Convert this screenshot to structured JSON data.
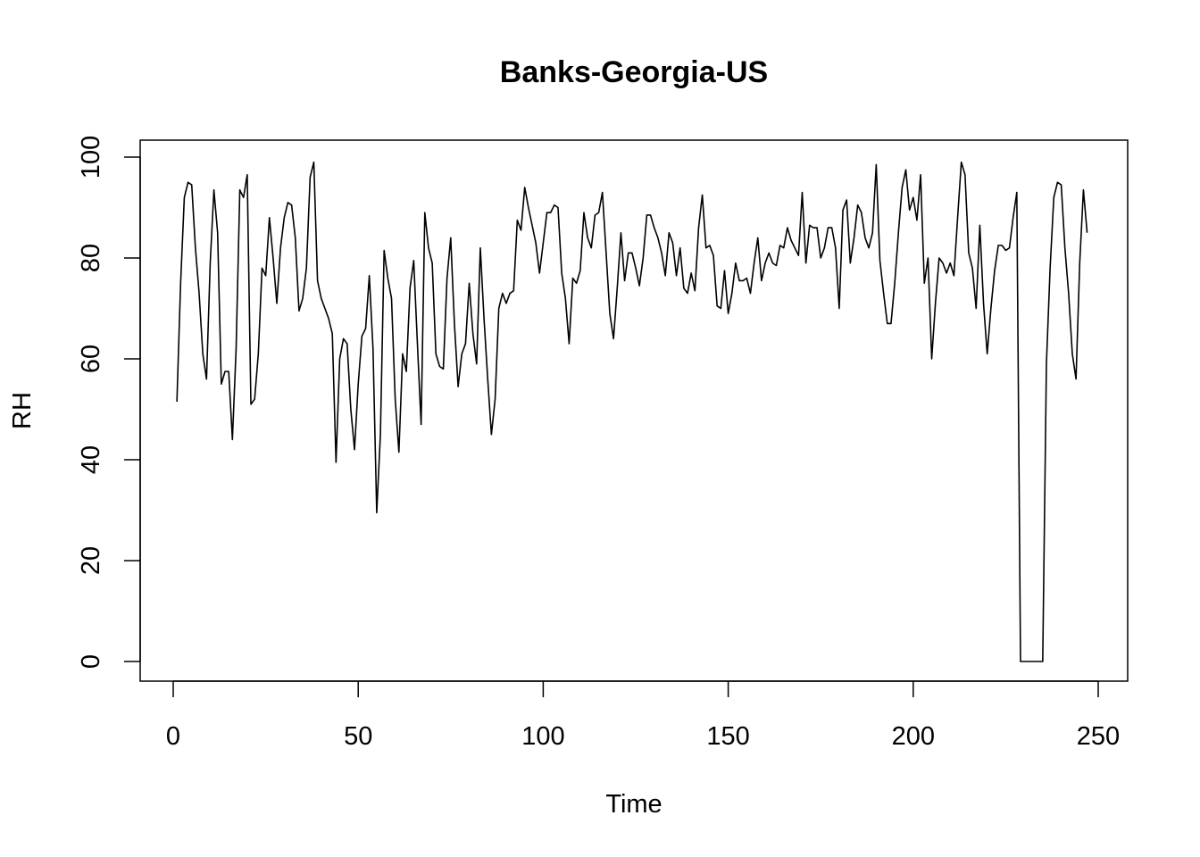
{
  "chart_data": {
    "type": "line",
    "title": "Banks-Georgia-US",
    "xlabel": "Time",
    "ylabel": "RH",
    "xlim": [
      0,
      250
    ],
    "ylim": [
      0,
      100
    ],
    "x_ticks": [
      0,
      50,
      100,
      150,
      200,
      250
    ],
    "y_ticks": [
      0,
      20,
      40,
      60,
      80,
      100
    ],
    "x_tick_labels": [
      "0",
      "50",
      "100",
      "150",
      "200",
      "250"
    ],
    "y_tick_labels": [
      "0",
      "20",
      "40",
      "60",
      "80",
      "100"
    ],
    "grid": false,
    "line_color": "#000000",
    "series": [
      {
        "x_start": 1,
        "x_step": 1,
        "values": [
          51.5,
          75,
          92,
          95,
          94.5,
          82,
          73,
          61,
          56,
          79,
          93.5,
          85,
          55,
          57.5,
          57.5,
          44,
          62,
          93.5,
          92,
          96.5,
          51,
          52,
          61,
          78,
          76.5,
          88,
          80,
          71,
          82,
          88,
          91,
          90.5,
          84,
          69.5,
          72,
          78,
          96,
          99,
          75.5,
          72,
          70,
          68,
          65,
          39.5,
          60,
          64,
          63,
          50,
          42,
          55,
          64.5,
          66,
          76.5,
          62,
          29.5,
          45,
          81.5,
          76,
          72,
          52,
          41.5,
          61,
          57.5,
          74,
          79.5,
          63,
          47,
          89,
          82,
          79,
          61,
          58.5,
          58,
          76,
          84,
          67,
          54.5,
          61,
          63,
          75,
          65,
          59,
          82,
          68,
          56,
          45,
          52,
          70,
          73,
          71,
          73,
          73.5,
          87.5,
          85.5,
          94,
          90,
          86.5,
          83,
          77,
          83,
          89,
          89,
          90.5,
          90,
          77,
          72,
          63,
          76,
          75,
          77.5,
          89,
          84,
          82,
          88.5,
          89,
          93,
          81,
          69,
          64,
          74,
          85,
          75.5,
          81,
          81,
          78,
          74.5,
          80,
          88.5,
          88.5,
          86,
          84,
          81,
          76.5,
          85,
          83,
          76.5,
          82,
          74,
          73,
          77,
          73.5,
          86,
          92.5,
          82,
          82.5,
          80.5,
          70.5,
          70,
          77.5,
          69,
          73,
          79,
          75.5,
          75.5,
          76,
          73,
          79,
          84,
          75.5,
          79,
          81,
          79,
          78.5,
          82.5,
          82,
          86,
          83.5,
          82,
          80.5,
          93,
          79,
          86.5,
          86,
          86,
          80,
          82,
          86,
          86,
          82,
          70,
          89.5,
          91.5,
          79,
          84,
          90.5,
          89,
          84,
          82,
          85,
          98.5,
          79.5,
          73,
          67,
          67,
          75,
          85,
          94,
          97.5,
          89.5,
          92,
          87.5,
          96.5,
          75,
          80,
          60,
          71,
          80,
          79,
          77,
          79,
          76.5,
          88,
          99,
          96.5,
          81,
          78,
          70,
          86.5,
          71,
          61,
          70,
          77.5,
          82.5,
          82.5,
          81.5,
          82,
          88,
          93,
          0,
          0,
          0,
          0,
          0,
          0,
          0,
          59,
          78,
          92,
          95,
          94.5,
          82,
          73,
          61,
          56,
          79,
          93.5,
          85
        ]
      }
    ]
  }
}
